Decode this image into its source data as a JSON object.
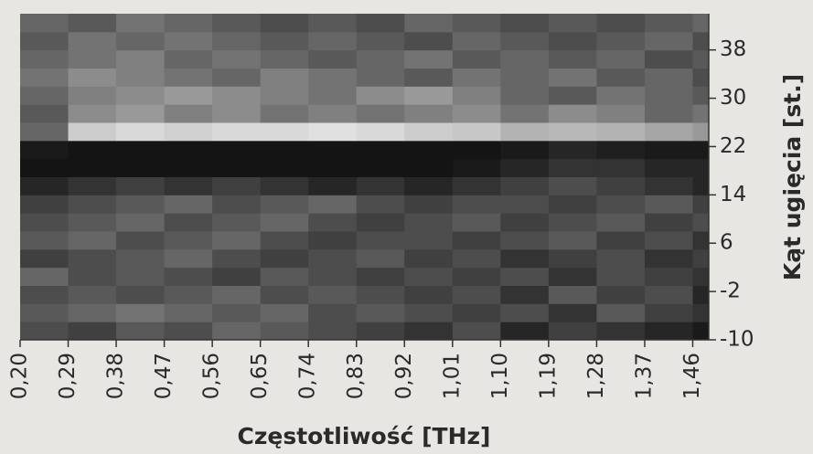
{
  "chart_data": {
    "type": "heatmap",
    "x_label": "Częstotliwość [THz]",
    "y_label": "Kąt ugięcia [st.]",
    "colormap": "gray",
    "zlim": [
      0,
      100
    ],
    "x": [
      0.2,
      0.29,
      0.38,
      0.47,
      0.56,
      0.65,
      0.74,
      0.83,
      0.92,
      1.01,
      1.1,
      1.19,
      1.28,
      1.37,
      1.46
    ],
    "y": [
      -10,
      -7,
      -4,
      -1,
      2,
      5,
      8,
      11,
      14,
      17,
      20,
      23,
      26,
      29,
      32,
      35,
      38,
      41
    ],
    "values": [
      [
        30,
        25,
        35,
        30,
        40,
        35,
        30,
        25,
        20,
        30,
        15,
        25,
        20,
        15,
        10
      ],
      [
        35,
        40,
        45,
        40,
        35,
        40,
        30,
        35,
        30,
        25,
        30,
        20,
        35,
        25,
        20
      ],
      [
        30,
        35,
        30,
        35,
        40,
        30,
        35,
        30,
        25,
        30,
        20,
        35,
        25,
        30,
        15
      ],
      [
        40,
        30,
        35,
        30,
        25,
        35,
        30,
        25,
        30,
        25,
        30,
        20,
        30,
        25,
        20
      ],
      [
        25,
        30,
        35,
        40,
        30,
        25,
        30,
        35,
        25,
        30,
        20,
        25,
        30,
        20,
        25
      ],
      [
        35,
        40,
        30,
        35,
        40,
        30,
        25,
        30,
        30,
        25,
        30,
        35,
        25,
        30,
        20
      ],
      [
        30,
        35,
        40,
        30,
        35,
        40,
        30,
        25,
        30,
        35,
        25,
        30,
        35,
        25,
        30
      ],
      [
        25,
        30,
        35,
        40,
        30,
        35,
        40,
        30,
        25,
        30,
        30,
        25,
        30,
        35,
        25
      ],
      [
        15,
        20,
        25,
        20,
        25,
        20,
        15,
        20,
        15,
        20,
        25,
        30,
        25,
        20,
        15
      ],
      [
        8,
        8,
        8,
        8,
        8,
        8,
        8,
        8,
        8,
        10,
        15,
        20,
        20,
        15,
        15
      ],
      [
        10,
        8,
        8,
        8,
        8,
        8,
        8,
        8,
        8,
        8,
        10,
        15,
        12,
        10,
        10
      ],
      [
        40,
        80,
        85,
        82,
        85,
        85,
        88,
        85,
        80,
        78,
        70,
        72,
        70,
        65,
        60
      ],
      [
        35,
        55,
        60,
        50,
        55,
        45,
        50,
        45,
        50,
        55,
        45,
        55,
        50,
        40,
        45
      ],
      [
        40,
        50,
        55,
        60,
        55,
        50,
        45,
        55,
        60,
        50,
        40,
        35,
        45,
        40,
        35
      ],
      [
        45,
        55,
        50,
        45,
        40,
        50,
        45,
        40,
        35,
        45,
        40,
        45,
        35,
        40,
        30
      ],
      [
        40,
        45,
        50,
        40,
        45,
        40,
        35,
        40,
        45,
        35,
        40,
        35,
        40,
        30,
        35
      ],
      [
        35,
        45,
        40,
        45,
        40,
        35,
        40,
        35,
        30,
        40,
        35,
        30,
        35,
        40,
        30
      ],
      [
        40,
        35,
        45,
        40,
        35,
        30,
        35,
        30,
        40,
        35,
        30,
        35,
        30,
        35,
        40
      ]
    ],
    "xlim": [
      0.2,
      1.49
    ],
    "ylim": [
      -10,
      44
    ],
    "xticks": [
      {
        "value": 0.2,
        "label": "0,20"
      },
      {
        "value": 0.29,
        "label": "0,29"
      },
      {
        "value": 0.38,
        "label": "0,38"
      },
      {
        "value": 0.47,
        "label": "0,47"
      },
      {
        "value": 0.56,
        "label": "0,56"
      },
      {
        "value": 0.65,
        "label": "0,65"
      },
      {
        "value": 0.74,
        "label": "0,74"
      },
      {
        "value": 0.83,
        "label": "0,83"
      },
      {
        "value": 0.92,
        "label": "0,92"
      },
      {
        "value": 1.01,
        "label": "1,01"
      },
      {
        "value": 1.1,
        "label": "1,10"
      },
      {
        "value": 1.19,
        "label": "1,19"
      },
      {
        "value": 1.28,
        "label": "1,28"
      },
      {
        "value": 1.37,
        "label": "1,37"
      },
      {
        "value": 1.46,
        "label": "1,46"
      }
    ],
    "yticks": [
      -10,
      -2,
      6,
      14,
      22,
      30,
      38
    ],
    "yaxis_side": "right"
  }
}
